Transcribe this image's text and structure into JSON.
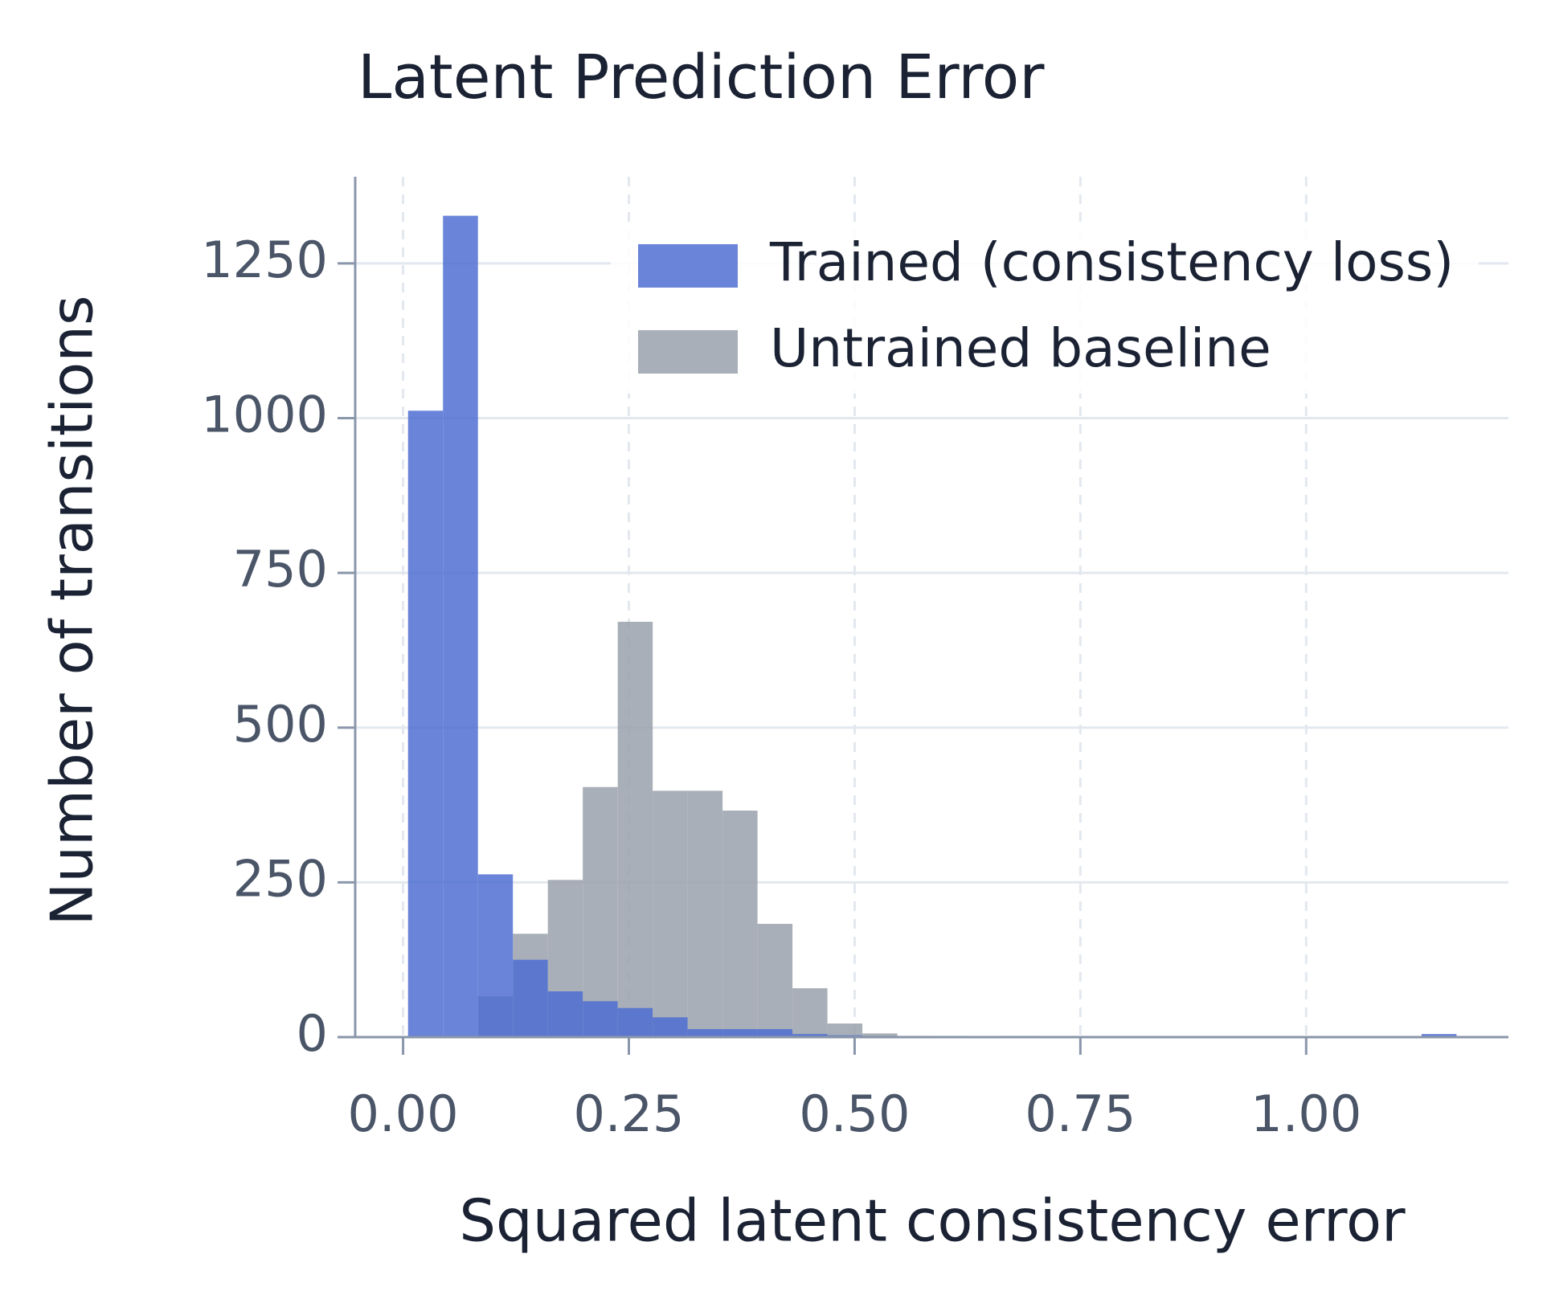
{
  "chart_data": {
    "type": "histogram",
    "title": "Latent Prediction Error",
    "x_label": "Squared latent consistency error",
    "y_label": "Number of transitions",
    "bins": [
      0.0055,
      0.0442,
      0.0829,
      0.1216,
      0.1603,
      0.199,
      0.2377,
      0.2764,
      0.3151,
      0.3538,
      0.3925,
      0.4312,
      0.4699,
      0.5086,
      0.5473,
      0.586,
      0.6247,
      0.6634,
      0.7021,
      0.7408,
      0.7795,
      0.8182,
      0.8569,
      0.8956,
      0.9343,
      0.973,
      1.0117,
      1.0504,
      1.0891,
      1.1278,
      1.1665
    ],
    "series": [
      {
        "name": "Untrained baseline",
        "color": "#9aa1ab",
        "values": [
          0,
          0,
          66,
          167,
          254,
          404,
          671,
          398,
          398,
          366,
          183,
          79,
          22,
          6,
          2,
          1,
          0,
          0,
          0,
          0,
          0,
          0,
          0,
          0,
          0,
          0,
          0,
          0,
          0,
          0
        ]
      },
      {
        "name": "Trained (consistency loss)",
        "color": "#4f6fd1",
        "values": [
          1012,
          1327,
          263,
          125,
          74,
          58,
          47,
          32,
          13,
          13,
          13,
          5,
          3,
          1,
          2,
          2,
          1,
          2,
          0,
          0,
          0,
          0,
          0,
          0,
          0,
          0,
          0,
          0,
          0,
          5
        ]
      }
    ],
    "legend_order": [
      1,
      0
    ],
    "legend": "upper right",
    "xlim": [
      -0.053,
      1.224
    ],
    "ylim": [
      0,
      1390
    ],
    "xticks": [
      {
        "value": 0,
        "label": "0.00"
      },
      {
        "value": 0.25,
        "label": "0.25"
      },
      {
        "value": 0.5,
        "label": "0.50"
      },
      {
        "value": 0.75,
        "label": "0.75"
      },
      {
        "value": 1,
        "label": "1.00"
      }
    ],
    "yticks": [
      0,
      250,
      500,
      750,
      1000,
      1250
    ],
    "grid": true
  }
}
